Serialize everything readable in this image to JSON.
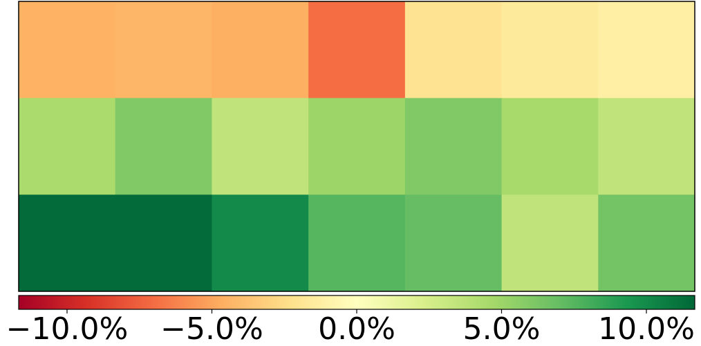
{
  "chart_data": {
    "type": "heatmap",
    "values": [
      [
        -4.5,
        -4.3,
        -4.6,
        -7.0,
        -2.0,
        -1.6,
        -1.2
      ],
      [
        4.5,
        6.0,
        3.5,
        5.0,
        6.0,
        4.6,
        3.5
      ],
      [
        11.5,
        11.5,
        10.0,
        7.5,
        7.0,
        3.5,
        6.5
      ]
    ],
    "colormap": "RdYlGn",
    "clim": [
      -11.67,
      11.67
    ],
    "cticks": [
      {
        "value": -10,
        "label": "−10.0%"
      },
      {
        "value": -5,
        "label": "−5.0%"
      },
      {
        "value": 0,
        "label": "0.0%"
      },
      {
        "value": 5,
        "label": "5.0%"
      },
      {
        "value": 10,
        "label": "10.0%"
      }
    ]
  }
}
